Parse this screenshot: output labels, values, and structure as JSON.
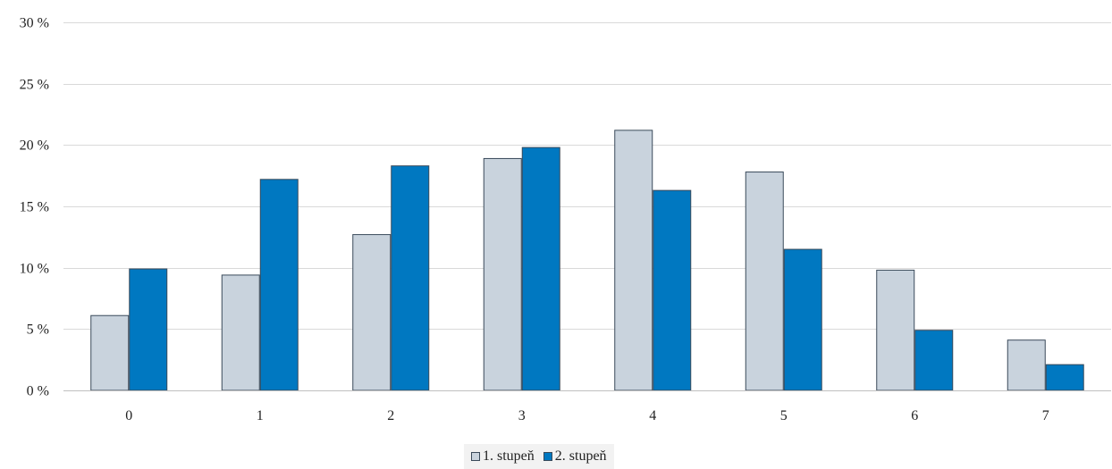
{
  "chart_data": {
    "type": "bar",
    "title": "",
    "xlabel": "",
    "ylabel": "",
    "categories": [
      "0",
      "1",
      "2",
      "3",
      "4",
      "5",
      "6",
      "7"
    ],
    "series": [
      {
        "name": "1. stupeň",
        "values": [
          6.1,
          9.4,
          12.7,
          18.9,
          21.2,
          17.8,
          9.8,
          4.1
        ],
        "color": "#c9d3dd"
      },
      {
        "name": "2. stupeň",
        "values": [
          9.9,
          17.2,
          18.3,
          19.8,
          16.3,
          11.5,
          4.9,
          2.1
        ],
        "color": "#0078c1"
      }
    ],
    "ylim": [
      0,
      30
    ],
    "yticks": [
      0,
      5,
      10,
      15,
      20,
      25,
      30
    ],
    "ytick_labels": [
      "0 %",
      "5 %",
      "10 %",
      "15 %",
      "20 %",
      "25 %",
      "30 %"
    ],
    "grid": true,
    "legend_position": "bottom"
  }
}
